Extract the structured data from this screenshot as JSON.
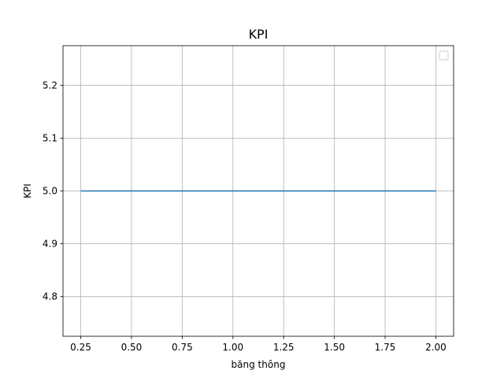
{
  "chart_data": {
    "type": "line",
    "title": "KPI",
    "xlabel": "băng thông",
    "ylabel": "KPI",
    "xlim": [
      0.1625,
      2.0875
    ],
    "ylim": [
      4.725,
      5.275
    ],
    "x_ticks": [
      0.25,
      0.5,
      0.75,
      1.0,
      1.25,
      1.5,
      1.75,
      2.0
    ],
    "x_tick_labels": [
      "0.25",
      "0.50",
      "0.75",
      "1.00",
      "1.25",
      "1.50",
      "1.75",
      "2.00"
    ],
    "y_ticks": [
      4.8,
      4.9,
      5.0,
      5.1,
      5.2
    ],
    "y_tick_labels": [
      "4.8",
      "4.9",
      "5.0",
      "5.1",
      "5.2"
    ],
    "grid": true,
    "legend": "top-right",
    "series": [
      {
        "color": "#1f77b4",
        "x": [
          0.25,
          0.5,
          0.75,
          1.0,
          1.25,
          1.5,
          1.75,
          2.0
        ],
        "y": [
          5.0,
          5.0,
          5.0,
          5.0,
          5.0,
          5.0,
          5.0,
          5.0
        ]
      }
    ]
  }
}
